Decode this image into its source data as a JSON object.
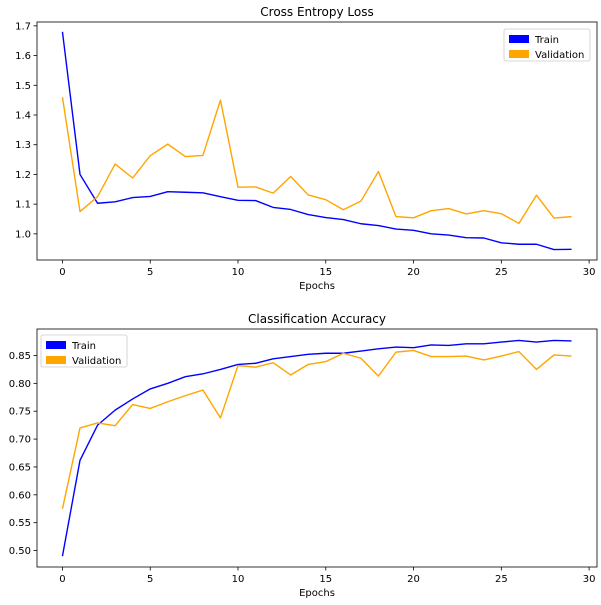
{
  "chart_data": [
    {
      "type": "line",
      "title": "Cross Entropy Loss",
      "xlabel": "Epochs",
      "ylabel": "",
      "x": [
        0,
        1,
        2,
        3,
        4,
        5,
        6,
        7,
        8,
        9,
        10,
        11,
        12,
        13,
        14,
        15,
        16,
        17,
        18,
        19,
        20,
        21,
        22,
        23,
        24,
        25,
        26,
        27,
        28,
        29
      ],
      "xlim": [
        -1.45,
        30.45
      ],
      "ylim": [
        0.912,
        1.713
      ],
      "x_ticks": [
        0,
        5,
        10,
        15,
        20,
        25,
        30
      ],
      "y_ticks": [
        1.0,
        1.1,
        1.2,
        1.3,
        1.4,
        1.5,
        1.6,
        1.7
      ],
      "y_tick_labels": [
        "1.0",
        "1.1",
        "1.2",
        "1.3",
        "1.4",
        "1.5",
        "1.6",
        "1.7"
      ],
      "legend_position": "top-right",
      "grid": false,
      "series": [
        {
          "name": "Train",
          "color": "#0000ff",
          "values": [
            1.68,
            1.2,
            1.103,
            1.108,
            1.122,
            1.126,
            1.142,
            1.14,
            1.138,
            1.125,
            1.113,
            1.112,
            1.089,
            1.082,
            1.065,
            1.055,
            1.048,
            1.034,
            1.028,
            1.016,
            1.012,
            1.0,
            0.996,
            0.987,
            0.986,
            0.97,
            0.965,
            0.965,
            0.947,
            0.948
          ]
        },
        {
          "name": "Validation",
          "color": "#ffa500",
          "values": [
            1.46,
            1.075,
            1.125,
            1.235,
            1.188,
            1.263,
            1.302,
            1.26,
            1.264,
            1.45,
            1.157,
            1.158,
            1.137,
            1.193,
            1.131,
            1.115,
            1.081,
            1.11,
            1.21,
            1.058,
            1.054,
            1.078,
            1.085,
            1.067,
            1.078,
            1.068,
            1.035,
            1.13,
            1.053,
            1.058
          ]
        }
      ]
    },
    {
      "type": "line",
      "title": "Classification Accuracy",
      "xlabel": "Epochs",
      "ylabel": "",
      "x": [
        0,
        1,
        2,
        3,
        4,
        5,
        6,
        7,
        8,
        9,
        10,
        11,
        12,
        13,
        14,
        15,
        16,
        17,
        18,
        19,
        20,
        21,
        22,
        23,
        24,
        25,
        26,
        27,
        28,
        29
      ],
      "xlim": [
        -1.45,
        30.45
      ],
      "ylim": [
        0.4705,
        0.8975
      ],
      "x_ticks": [
        0,
        5,
        10,
        15,
        20,
        25,
        30
      ],
      "y_ticks": [
        0.5,
        0.55,
        0.6,
        0.65,
        0.7,
        0.75,
        0.8,
        0.85
      ],
      "y_tick_labels": [
        "0.50",
        "0.55",
        "0.60",
        "0.65",
        "0.70",
        "0.75",
        "0.80",
        "0.85"
      ],
      "legend_position": "top-left",
      "grid": false,
      "series": [
        {
          "name": "Train",
          "color": "#0000ff",
          "values": [
            0.49,
            0.662,
            0.725,
            0.752,
            0.772,
            0.79,
            0.8,
            0.812,
            0.817,
            0.825,
            0.834,
            0.836,
            0.844,
            0.848,
            0.852,
            0.854,
            0.854,
            0.858,
            0.862,
            0.865,
            0.864,
            0.869,
            0.868,
            0.871,
            0.871,
            0.874,
            0.877,
            0.874,
            0.877,
            0.876
          ]
        },
        {
          "name": "Validation",
          "color": "#ffa500",
          "values": [
            0.575,
            0.72,
            0.729,
            0.724,
            0.762,
            0.755,
            0.767,
            0.778,
            0.788,
            0.738,
            0.832,
            0.829,
            0.837,
            0.815,
            0.834,
            0.839,
            0.854,
            0.845,
            0.813,
            0.856,
            0.859,
            0.848,
            0.848,
            0.849,
            0.842,
            0.849,
            0.857,
            0.825,
            0.851,
            0.849
          ]
        }
      ]
    }
  ]
}
